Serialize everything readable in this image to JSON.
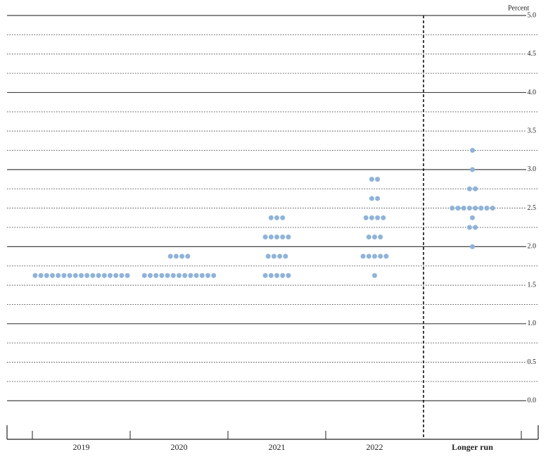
{
  "chart_data": {
    "type": "dot",
    "y_label": "Percent",
    "categories": [
      "2019",
      "2020",
      "2021",
      "2022",
      "Longer run"
    ],
    "dots": [
      [
        {
          "rate": 1.625,
          "count": 17
        }
      ],
      [
        {
          "rate": 1.625,
          "count": 13
        },
        {
          "rate": 1.875,
          "count": 4
        }
      ],
      [
        {
          "rate": 1.625,
          "count": 5
        },
        {
          "rate": 1.875,
          "count": 4
        },
        {
          "rate": 2.125,
          "count": 5
        },
        {
          "rate": 2.375,
          "count": 3
        }
      ],
      [
        {
          "rate": 1.625,
          "count": 1
        },
        {
          "rate": 1.875,
          "count": 5
        },
        {
          "rate": 2.125,
          "count": 3
        },
        {
          "rate": 2.375,
          "count": 4
        },
        {
          "rate": 2.625,
          "count": 2
        },
        {
          "rate": 2.875,
          "count": 2
        }
      ],
      [
        {
          "rate": 2.0,
          "count": 1
        },
        {
          "rate": 2.25,
          "count": 2
        },
        {
          "rate": 2.375,
          "count": 1
        },
        {
          "rate": 2.5,
          "count": 8
        },
        {
          "rate": 2.75,
          "count": 2
        },
        {
          "rate": 3.0,
          "count": 1
        },
        {
          "rate": 3.25,
          "count": 1
        }
      ]
    ],
    "color": "#8fb3d9",
    "ylim": [
      -0.5,
      5.0
    ],
    "yticks": [
      {
        "value": 0,
        "label": "0.0"
      },
      0.5,
      {
        "value": 1,
        "label": "1.0"
      },
      1.5,
      {
        "value": 2,
        "label": "2.0"
      },
      2.5,
      {
        "value": 3,
        "label": "3.0"
      },
      3.5,
      {
        "value": 4,
        "label": "4.0"
      },
      4.5,
      {
        "value": 5,
        "label": "5.0"
      }
    ],
    "minor_yticks": [
      0.25,
      0.75,
      1.25,
      1.75,
      2.25,
      2.75,
      3.25,
      3.75,
      4.25,
      4.75
    ]
  }
}
